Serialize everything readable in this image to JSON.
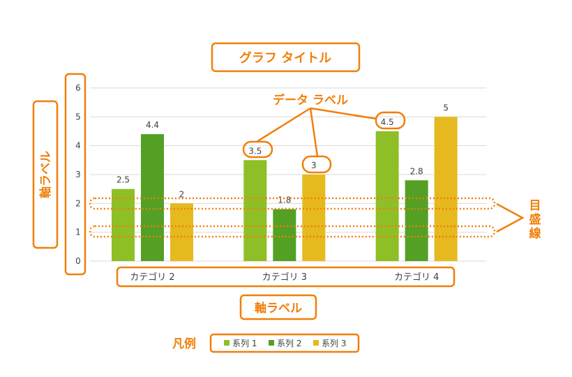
{
  "chart_data": {
    "type": "bar",
    "categories": [
      "カテゴリ 2",
      "カテゴリ 3",
      "カテゴリ 4"
    ],
    "series": [
      {
        "name": "系列 1",
        "values": [
          2.5,
          3.5,
          4.5
        ],
        "color": "#8fbf26"
      },
      {
        "name": "系列 2",
        "values": [
          4.4,
          1.8,
          2.8
        ],
        "color": "#53a024"
      },
      {
        "name": "系列 3",
        "values": [
          2,
          3,
          5
        ],
        "color": "#e6b91e"
      }
    ],
    "ylim": [
      0,
      6
    ],
    "yticks": [
      "0",
      "1",
      "2",
      "3",
      "4",
      "5",
      "6"
    ],
    "grid": true,
    "legend_position": "bottom",
    "data_labels": true
  },
  "callouts": {
    "chart_title": "グラフ タイトル",
    "vertical_axis_label": "軸ラベル",
    "horizontal_axis_label": "軸ラベル",
    "data_label": "データ ラベル",
    "gridlines": "目盛線",
    "legend": "凡例"
  },
  "colors": {
    "accent": "#f07f09",
    "gridline": "#d9d9d9",
    "text": "#404040"
  }
}
